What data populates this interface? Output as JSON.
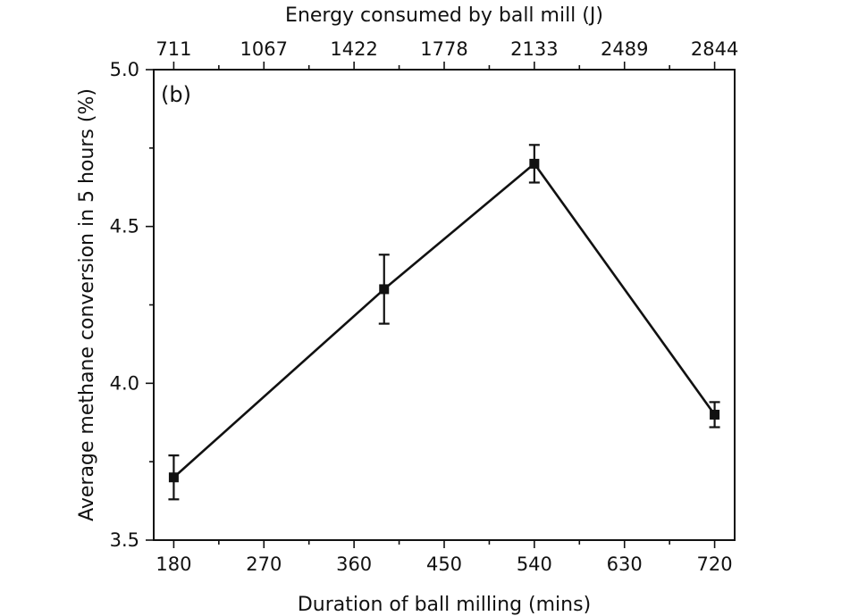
{
  "chart_data": {
    "type": "line",
    "panel_label": "(b)",
    "xlabel": "Duration of ball milling (mins)",
    "x2label": "Energy consumed by ball mill (J)",
    "ylabel": "Average methane conversion in 5 hours (%)",
    "xlim": [
      160,
      740
    ],
    "ylim": [
      3.5,
      5.0
    ],
    "x_ticks": [
      180,
      270,
      360,
      450,
      540,
      630,
      720
    ],
    "x_tick_labels": [
      "180",
      "270",
      "360",
      "450",
      "540",
      "630",
      "720"
    ],
    "x2_tick_labels": [
      "711",
      "1067",
      "1422",
      "1778",
      "2133",
      "2489",
      "2844"
    ],
    "y_ticks": [
      3.5,
      4.0,
      4.5,
      5.0
    ],
    "y_tick_labels": [
      "3.5",
      "4.0",
      "4.5",
      "5.0"
    ],
    "legend": "none",
    "grid": false,
    "series": [
      {
        "name": "Average methane conversion",
        "color": "#111111",
        "marker": "square",
        "x": [
          180,
          390,
          540,
          720
        ],
        "y": [
          3.7,
          4.3,
          4.7,
          3.9
        ],
        "yerr": [
          0.07,
          0.11,
          0.06,
          0.04
        ]
      }
    ]
  }
}
